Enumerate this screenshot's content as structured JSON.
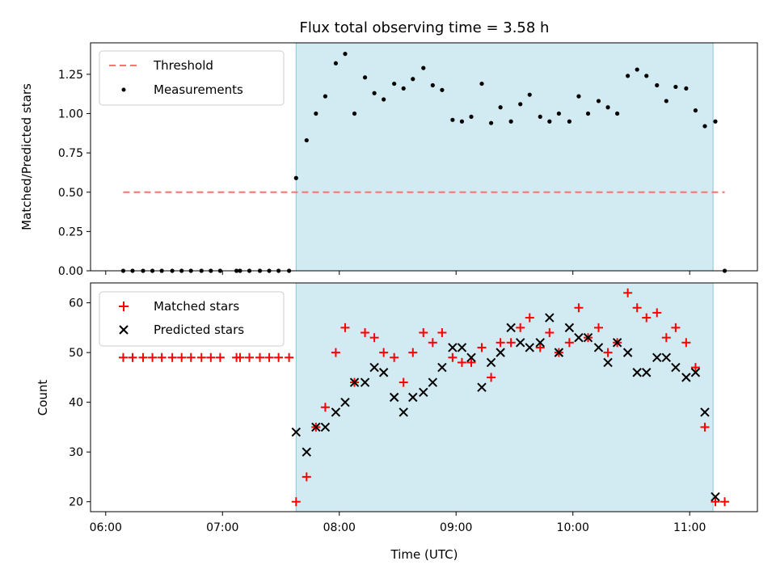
{
  "chart_data": {
    "type": "scatter",
    "title": "Flux total observing time = 3.58 h",
    "xlabel": "Time (UTC)",
    "x_tick_labels": [
      "06:00",
      "07:00",
      "08:00",
      "09:00",
      "10:00",
      "11:00"
    ],
    "x_ticks_hours": [
      6,
      7,
      8,
      9,
      10,
      11
    ],
    "xlim_hours": [
      5.87,
      11.58
    ],
    "shaded_interval_hours": [
      7.63,
      11.2
    ],
    "shade_color": "#add8e6",
    "top": {
      "ylabel": "Matched/Predicted stars",
      "ylim": [
        0,
        1.45
      ],
      "y_ticks": [
        0.0,
        0.25,
        0.5,
        0.75,
        1.0,
        1.25
      ],
      "y_tick_labels": [
        "0.00",
        "0.25",
        "0.50",
        "0.75",
        "1.00",
        "1.25"
      ],
      "threshold": {
        "name": "Threshold",
        "value": 0.5,
        "x_range_hours": [
          6.15,
          11.3
        ],
        "color": "#ff7070"
      },
      "measurements": {
        "name": "Measurements",
        "color": "#000000",
        "points": [
          [
            6.15,
            0
          ],
          [
            6.23,
            0
          ],
          [
            6.32,
            0
          ],
          [
            6.4,
            0
          ],
          [
            6.48,
            0
          ],
          [
            6.57,
            0
          ],
          [
            6.65,
            0
          ],
          [
            6.73,
            0
          ],
          [
            6.82,
            0
          ],
          [
            6.9,
            0
          ],
          [
            6.98,
            0
          ],
          [
            7.12,
            0
          ],
          [
            7.15,
            0
          ],
          [
            7.23,
            0
          ],
          [
            7.32,
            0
          ],
          [
            7.4,
            0
          ],
          [
            7.48,
            0
          ],
          [
            7.57,
            0
          ],
          [
            7.63,
            0.59
          ],
          [
            7.72,
            0.83
          ],
          [
            7.8,
            1.0
          ],
          [
            7.88,
            1.11
          ],
          [
            7.97,
            1.32
          ],
          [
            8.05,
            1.38
          ],
          [
            8.13,
            1.0
          ],
          [
            8.22,
            1.23
          ],
          [
            8.3,
            1.13
          ],
          [
            8.38,
            1.09
          ],
          [
            8.47,
            1.19
          ],
          [
            8.55,
            1.16
          ],
          [
            8.63,
            1.22
          ],
          [
            8.72,
            1.29
          ],
          [
            8.8,
            1.18
          ],
          [
            8.88,
            1.15
          ],
          [
            8.97,
            0.96
          ],
          [
            9.05,
            0.95
          ],
          [
            9.13,
            0.98
          ],
          [
            9.22,
            1.19
          ],
          [
            9.3,
            0.94
          ],
          [
            9.38,
            1.04
          ],
          [
            9.47,
            0.95
          ],
          [
            9.55,
            1.06
          ],
          [
            9.63,
            1.12
          ],
          [
            9.72,
            0.98
          ],
          [
            9.8,
            0.95
          ],
          [
            9.88,
            1.0
          ],
          [
            9.97,
            0.95
          ],
          [
            10.05,
            1.11
          ],
          [
            10.13,
            1.0
          ],
          [
            10.22,
            1.08
          ],
          [
            10.3,
            1.04
          ],
          [
            10.38,
            1.0
          ],
          [
            10.47,
            1.24
          ],
          [
            10.55,
            1.28
          ],
          [
            10.63,
            1.24
          ],
          [
            10.72,
            1.18
          ],
          [
            10.8,
            1.08
          ],
          [
            10.88,
            1.17
          ],
          [
            10.97,
            1.16
          ],
          [
            11.05,
            1.02
          ],
          [
            11.13,
            0.92
          ],
          [
            11.22,
            0.95
          ],
          [
            11.3,
            0
          ]
        ]
      }
    },
    "bottom": {
      "ylabel": "Count",
      "ylim": [
        18,
        64
      ],
      "y_ticks": [
        20,
        30,
        40,
        50,
        60
      ],
      "y_tick_labels": [
        "20",
        "30",
        "40",
        "50",
        "60"
      ],
      "matched": {
        "name": "Matched stars",
        "color": "#ff0000",
        "points": [
          [
            6.15,
            49
          ],
          [
            6.23,
            49
          ],
          [
            6.32,
            49
          ],
          [
            6.4,
            49
          ],
          [
            6.48,
            49
          ],
          [
            6.57,
            49
          ],
          [
            6.65,
            49
          ],
          [
            6.73,
            49
          ],
          [
            6.82,
            49
          ],
          [
            6.9,
            49
          ],
          [
            6.98,
            49
          ],
          [
            7.12,
            49
          ],
          [
            7.15,
            49
          ],
          [
            7.23,
            49
          ],
          [
            7.32,
            49
          ],
          [
            7.4,
            49
          ],
          [
            7.48,
            49
          ],
          [
            7.57,
            49
          ],
          [
            7.63,
            20
          ],
          [
            7.72,
            25
          ],
          [
            7.8,
            35
          ],
          [
            7.88,
            39
          ],
          [
            7.97,
            50
          ],
          [
            8.05,
            55
          ],
          [
            8.13,
            44
          ],
          [
            8.22,
            54
          ],
          [
            8.3,
            53
          ],
          [
            8.38,
            50
          ],
          [
            8.47,
            49
          ],
          [
            8.55,
            44
          ],
          [
            8.63,
            50
          ],
          [
            8.72,
            54
          ],
          [
            8.8,
            52
          ],
          [
            8.88,
            54
          ],
          [
            8.97,
            49
          ],
          [
            9.05,
            48
          ],
          [
            9.13,
            48
          ],
          [
            9.22,
            51
          ],
          [
            9.3,
            45
          ],
          [
            9.38,
            52
          ],
          [
            9.47,
            52
          ],
          [
            9.55,
            55
          ],
          [
            9.63,
            57
          ],
          [
            9.72,
            51
          ],
          [
            9.8,
            54
          ],
          [
            9.88,
            50
          ],
          [
            9.97,
            52
          ],
          [
            10.05,
            59
          ],
          [
            10.13,
            53
          ],
          [
            10.22,
            55
          ],
          [
            10.3,
            50
          ],
          [
            10.38,
            52
          ],
          [
            10.47,
            62
          ],
          [
            10.55,
            59
          ],
          [
            10.63,
            57
          ],
          [
            10.72,
            58
          ],
          [
            10.8,
            53
          ],
          [
            10.88,
            55
          ],
          [
            10.97,
            52
          ],
          [
            11.05,
            47
          ],
          [
            11.13,
            35
          ],
          [
            11.22,
            20
          ],
          [
            11.3,
            20
          ]
        ]
      },
      "predicted": {
        "name": "Predicted stars",
        "color": "#000000",
        "points": [
          [
            7.63,
            34
          ],
          [
            7.72,
            30
          ],
          [
            7.8,
            35
          ],
          [
            7.88,
            35
          ],
          [
            7.97,
            38
          ],
          [
            8.05,
            40
          ],
          [
            8.13,
            44
          ],
          [
            8.22,
            44
          ],
          [
            8.3,
            47
          ],
          [
            8.38,
            46
          ],
          [
            8.47,
            41
          ],
          [
            8.55,
            38
          ],
          [
            8.63,
            41
          ],
          [
            8.72,
            42
          ],
          [
            8.8,
            44
          ],
          [
            8.88,
            47
          ],
          [
            8.97,
            51
          ],
          [
            9.05,
            51
          ],
          [
            9.13,
            49
          ],
          [
            9.22,
            43
          ],
          [
            9.3,
            48
          ],
          [
            9.38,
            50
          ],
          [
            9.47,
            55
          ],
          [
            9.55,
            52
          ],
          [
            9.63,
            51
          ],
          [
            9.72,
            52
          ],
          [
            9.8,
            57
          ],
          [
            9.88,
            50
          ],
          [
            9.97,
            55
          ],
          [
            10.05,
            53
          ],
          [
            10.13,
            53
          ],
          [
            10.22,
            51
          ],
          [
            10.3,
            48
          ],
          [
            10.38,
            52
          ],
          [
            10.47,
            50
          ],
          [
            10.55,
            46
          ],
          [
            10.63,
            46
          ],
          [
            10.72,
            49
          ],
          [
            10.8,
            49
          ],
          [
            10.88,
            47
          ],
          [
            10.97,
            45
          ],
          [
            11.05,
            46
          ],
          [
            11.13,
            38
          ],
          [
            11.22,
            21
          ]
        ]
      }
    }
  }
}
